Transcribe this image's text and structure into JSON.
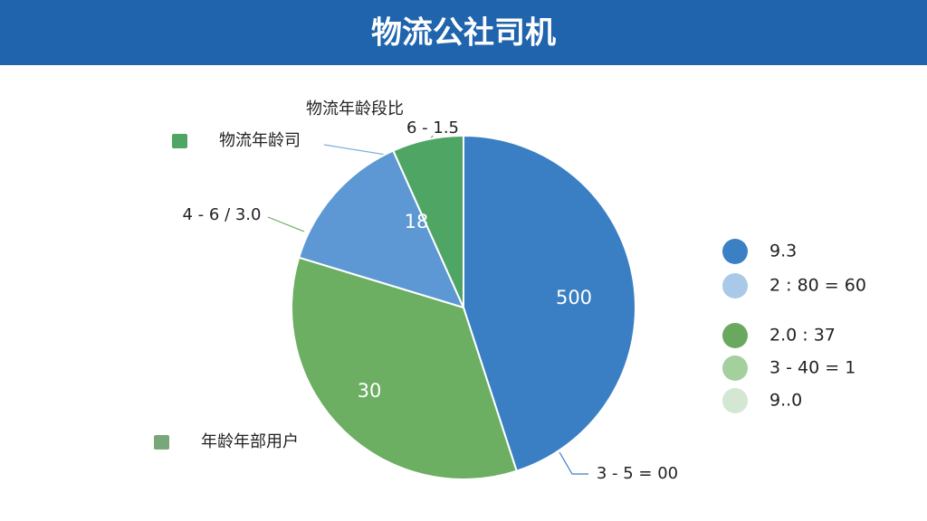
{
  "chart_data": {
    "type": "pie",
    "title": "物流公社司机",
    "subtitle": "物流年龄段比",
    "categories": [
      null,
      null,
      null,
      null
    ],
    "values": [
      45,
      34.7,
      13.6,
      6.7
    ],
    "colors": [
      "#3a7fc4",
      "#6cae62",
      "#5d98d4",
      "#4ea564"
    ],
    "slice_labels": [
      "500",
      "30",
      "18",
      null
    ],
    "annotations": [
      "6 - 1.5",
      "4 - 6 / 3.0",
      "3 - 5 = 00"
    ],
    "side_labels": [
      {
        "label": "物流年龄司",
        "color": "#4ea564"
      },
      {
        "label": "年龄年部用户",
        "color": "#7aa77a"
      }
    ],
    "legend": [
      {
        "label": "9.3",
        "color": "#3b7fc4"
      },
      {
        "label": "2 : 80 = 60",
        "color": "#a9c9e8"
      },
      {
        "label": "2.0 : 37",
        "color": "#6aa85f"
      },
      {
        "label": "3 - 40 = 1",
        "color": "#a3d09d"
      },
      {
        "label": "9..0",
        "color": "#d3e7d2"
      }
    ]
  }
}
